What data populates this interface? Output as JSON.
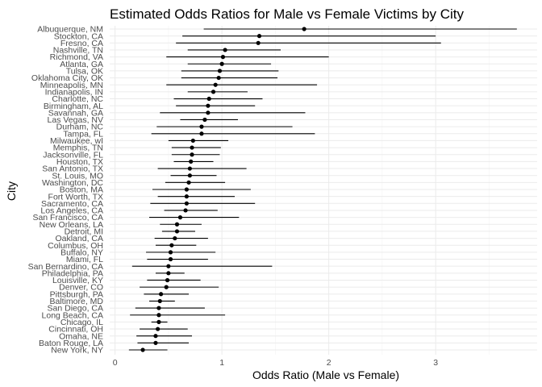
{
  "chart_data": {
    "type": "scatter",
    "title": "Estimated Odds Ratios for Male vs Female Victims by City",
    "xlabel": "Odds Ratio (Male vs Female)",
    "ylabel": "City",
    "xlim": [
      -0.05,
      3.95
    ],
    "xticks": [
      0,
      1,
      2,
      3
    ],
    "grid": true,
    "legend": "none",
    "cities": [
      "Albuquerque, NM",
      "Stockton, CA",
      "Fresno, CA",
      "Nashville, TN",
      "Richmond, VA",
      "Atlanta, GA",
      "Tulsa, OK",
      "Oklahoma City, OK",
      "Minneapolis, MN",
      "Indianapolis, IN",
      "Charlotte, NC",
      "Birmingham, AL",
      "Savannah, GA",
      "Las Vegas, NV",
      "Durham, NC",
      "Tampa, FL",
      "Milwaukee, wI",
      "Memphis, TN",
      "Jacksonville, FL",
      "Houston, TX",
      "San Antonio, TX",
      "St. Louis, MO",
      "Washington, DC",
      "Boston, MA",
      "Fort Worth, TX",
      "Sacramento, CA",
      "Los Angeles, CA",
      "San Francisco, CA",
      "New Orleans, LA",
      "Detroit, MI",
      "Oakland, CA",
      "Columbus, OH",
      "Buffalo, NY",
      "Miami, FL",
      "San Bernardino, CA",
      "Philadelphia, PA",
      "Louisville, KY",
      "Denver, CO",
      "Pittsburgh, PA",
      "Baltimore, MD",
      "San Diego, CA",
      "Long Beach, CA",
      "Chicago, IL",
      "Cincinnati, OH",
      "Omaha, NE",
      "Baton Rouge, LA",
      "New York, NY"
    ],
    "estimate": [
      1.77,
      1.35,
      1.34,
      1.03,
      1.01,
      1.0,
      0.98,
      0.97,
      0.94,
      0.92,
      0.88,
      0.87,
      0.87,
      0.84,
      0.81,
      0.81,
      0.73,
      0.72,
      0.72,
      0.71,
      0.7,
      0.7,
      0.69,
      0.67,
      0.67,
      0.67,
      0.66,
      0.61,
      0.58,
      0.58,
      0.56,
      0.53,
      0.52,
      0.52,
      0.5,
      0.5,
      0.49,
      0.48,
      0.43,
      0.42,
      0.41,
      0.41,
      0.41,
      0.4,
      0.38,
      0.38,
      0.26
    ],
    "ci_low": [
      0.83,
      0.63,
      0.57,
      0.68,
      0.48,
      0.68,
      0.62,
      0.62,
      0.48,
      0.68,
      0.55,
      0.57,
      0.42,
      0.61,
      0.39,
      0.34,
      0.5,
      0.53,
      0.53,
      0.55,
      0.4,
      0.52,
      0.47,
      0.35,
      0.4,
      0.33,
      0.46,
      0.32,
      0.42,
      0.44,
      0.37,
      0.38,
      0.29,
      0.3,
      0.16,
      0.38,
      0.3,
      0.23,
      0.27,
      0.32,
      0.19,
      0.14,
      0.34,
      0.23,
      0.2,
      0.21,
      0.13
    ],
    "ci_high": [
      3.76,
      3.0,
      3.05,
      1.55,
      2.0,
      1.46,
      1.53,
      1.52,
      1.89,
      1.24,
      1.38,
      1.31,
      1.78,
      1.15,
      1.66,
      1.87,
      1.06,
      0.99,
      0.98,
      0.92,
      1.23,
      0.95,
      1.03,
      1.27,
      1.12,
      1.31,
      0.96,
      1.16,
      0.81,
      0.75,
      0.87,
      0.76,
      0.94,
      0.87,
      1.47,
      0.65,
      0.8,
      0.97,
      0.69,
      0.56,
      0.84,
      1.03,
      0.49,
      0.68,
      0.72,
      0.69,
      0.49
    ]
  }
}
